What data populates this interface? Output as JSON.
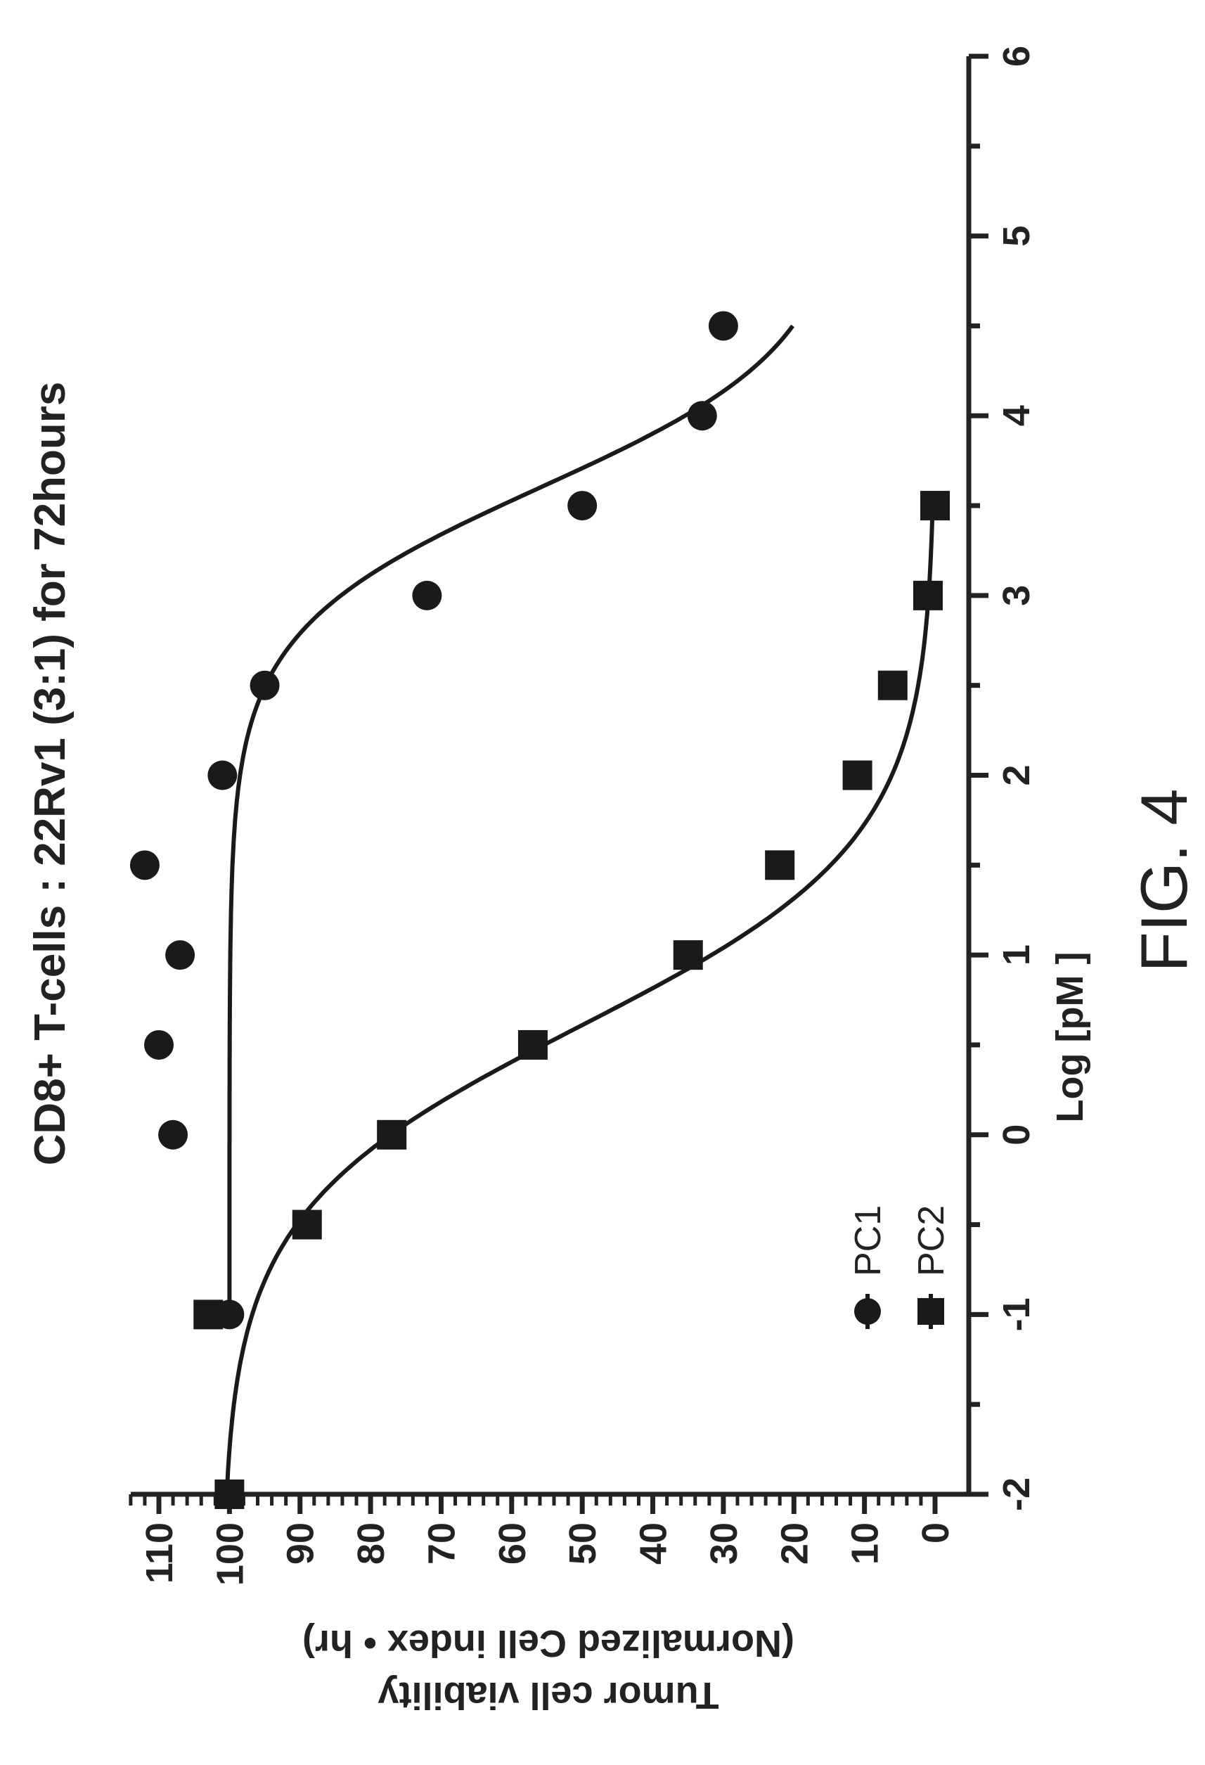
{
  "figure": {
    "caption": "FIG. 4"
  },
  "chart_data": {
    "type": "scatter",
    "title": "CD8+ T-cells : 22Rv1 (3:1) for 72hours",
    "xlabel": "Log [pM ]",
    "ylabel_line1": "Tumor cell viability",
    "ylabel_line2": "(Normalized Cell index • hr)",
    "xlim": [
      -2,
      6
    ],
    "ylim": [
      -3,
      115
    ],
    "xticks": [
      "-2",
      "-1",
      "0",
      "1",
      "2",
      "3",
      "4",
      "5",
      "6"
    ],
    "yticks": [
      "0",
      "10",
      "20",
      "30",
      "40",
      "50",
      "60",
      "70",
      "80",
      "90",
      "100",
      "110"
    ],
    "grid": false,
    "legend_position": "bottom-left",
    "series": [
      {
        "name": "PC1",
        "marker": "circle",
        "color": "#1a1a1a",
        "points": [
          {
            "x": -1,
            "y": 100
          },
          {
            "x": 0,
            "y": 108
          },
          {
            "x": 0.5,
            "y": 110
          },
          {
            "x": 1,
            "y": 107
          },
          {
            "x": 1.5,
            "y": 112
          },
          {
            "x": 2,
            "y": 101
          },
          {
            "x": 2.5,
            "y": 95
          },
          {
            "x": 3,
            "y": 72
          },
          {
            "x": 3.5,
            "y": 50
          },
          {
            "x": 4,
            "y": 33
          },
          {
            "x": 4.5,
            "y": 30
          }
        ],
        "fit_curve": {
          "top": 100,
          "bottom": 12,
          "logec50": 3.6,
          "hill": 1.1,
          "x_range": [
            -1,
            4.5
          ]
        }
      },
      {
        "name": "PC2",
        "marker": "square",
        "color": "#1a1a1a",
        "points": [
          {
            "x": -2,
            "y": 100
          },
          {
            "x": -1,
            "y": 103
          },
          {
            "x": -0.5,
            "y": 89
          },
          {
            "x": 0,
            "y": 77
          },
          {
            "x": 0.5,
            "y": 57
          },
          {
            "x": 1,
            "y": 35
          },
          {
            "x": 1.5,
            "y": 22
          },
          {
            "x": 2,
            "y": 11
          },
          {
            "x": 2.5,
            "y": 6
          },
          {
            "x": 3,
            "y": 1
          },
          {
            "x": 3.5,
            "y": 0
          }
        ],
        "fit_curve": {
          "top": 101,
          "bottom": 0,
          "logec50": 0.6,
          "hill": 0.85,
          "x_range": [
            -2,
            3.5
          ]
        }
      }
    ]
  }
}
